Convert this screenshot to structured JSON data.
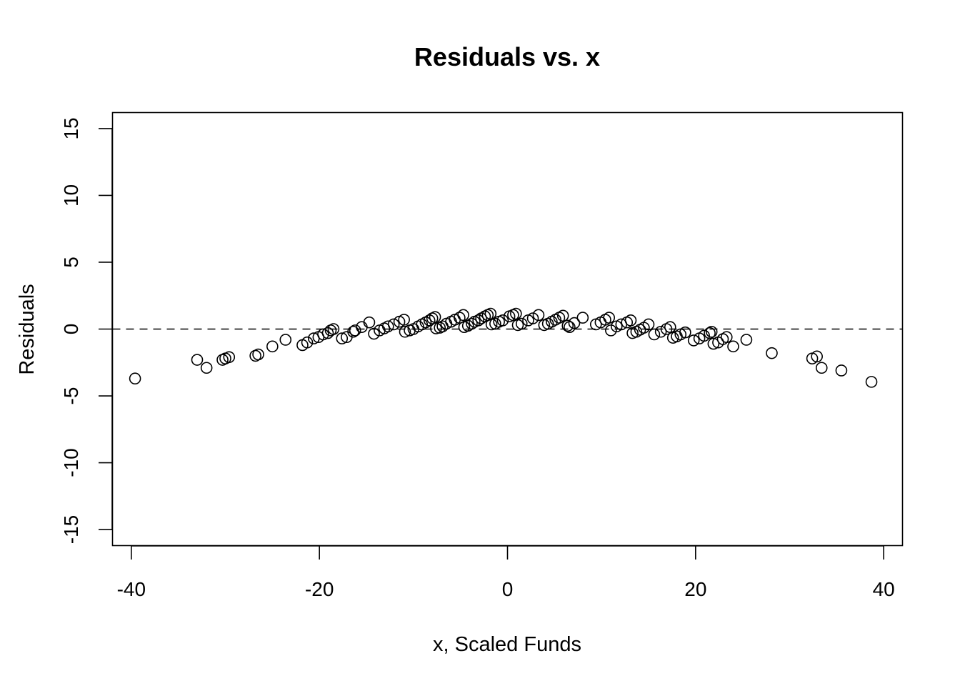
{
  "chart_data": {
    "type": "scatter",
    "title": "Residuals vs. x",
    "xlabel": "x, Scaled Funds",
    "ylabel": "Residuals",
    "xlim": [
      -42,
      42
    ],
    "ylim": [
      -16.2,
      16.2
    ],
    "xticks": [
      -40,
      -20,
      0,
      20,
      40
    ],
    "yticks": [
      -15,
      -10,
      -5,
      0,
      5,
      10,
      15
    ],
    "reference_line": {
      "y": 0,
      "style": "dashed"
    },
    "grid": false,
    "points": [
      {
        "x": -39.6,
        "y": -3.7
      },
      {
        "x": -33.0,
        "y": -2.3
      },
      {
        "x": -32.0,
        "y": -2.9
      },
      {
        "x": -30.3,
        "y": -2.3
      },
      {
        "x": -30.0,
        "y": -2.2
      },
      {
        "x": -29.6,
        "y": -2.1
      },
      {
        "x": -26.8,
        "y": -2.0
      },
      {
        "x": -26.5,
        "y": -1.9
      },
      {
        "x": -25.0,
        "y": -1.3
      },
      {
        "x": -23.6,
        "y": -0.8
      },
      {
        "x": -21.8,
        "y": -1.2
      },
      {
        "x": -21.3,
        "y": -1.0
      },
      {
        "x": -20.6,
        "y": -0.7
      },
      {
        "x": -20.1,
        "y": -0.6
      },
      {
        "x": -19.6,
        "y": -0.4
      },
      {
        "x": -19.1,
        "y": -0.3
      },
      {
        "x": -18.8,
        "y": -0.1
      },
      {
        "x": -18.5,
        "y": 0.0
      },
      {
        "x": -17.6,
        "y": -0.7
      },
      {
        "x": -17.1,
        "y": -0.6
      },
      {
        "x": -16.4,
        "y": -0.2
      },
      {
        "x": -16.2,
        "y": -0.1
      },
      {
        "x": -15.5,
        "y": 0.15
      },
      {
        "x": -14.7,
        "y": 0.5
      },
      {
        "x": -14.2,
        "y": -0.35
      },
      {
        "x": -13.6,
        "y": -0.1
      },
      {
        "x": -13.1,
        "y": 0.05
      },
      {
        "x": -12.7,
        "y": 0.2
      },
      {
        "x": -12.1,
        "y": 0.35
      },
      {
        "x": -11.5,
        "y": 0.55
      },
      {
        "x": -11.0,
        "y": 0.7
      },
      {
        "x": -10.9,
        "y": -0.2
      },
      {
        "x": -10.4,
        "y": -0.1
      },
      {
        "x": -10.0,
        "y": 0.0
      },
      {
        "x": -9.5,
        "y": 0.2
      },
      {
        "x": -9.1,
        "y": 0.35
      },
      {
        "x": -8.7,
        "y": 0.5
      },
      {
        "x": -8.3,
        "y": 0.65
      },
      {
        "x": -8.0,
        "y": 0.8
      },
      {
        "x": -7.7,
        "y": 0.9
      },
      {
        "x": -7.6,
        "y": 0.05
      },
      {
        "x": -7.2,
        "y": 0.1
      },
      {
        "x": -6.9,
        "y": 0.2
      },
      {
        "x": -6.5,
        "y": 0.4
      },
      {
        "x": -6.0,
        "y": 0.55
      },
      {
        "x": -5.6,
        "y": 0.7
      },
      {
        "x": -5.1,
        "y": 0.85
      },
      {
        "x": -4.7,
        "y": 1.05
      },
      {
        "x": -4.6,
        "y": 0.15
      },
      {
        "x": -4.2,
        "y": 0.25
      },
      {
        "x": -3.8,
        "y": 0.4
      },
      {
        "x": -3.5,
        "y": 0.55
      },
      {
        "x": -3.1,
        "y": 0.65
      },
      {
        "x": -2.8,
        "y": 0.8
      },
      {
        "x": -2.4,
        "y": 0.95
      },
      {
        "x": -2.1,
        "y": 1.05
      },
      {
        "x": -1.8,
        "y": 1.15
      },
      {
        "x": -1.7,
        "y": 0.35
      },
      {
        "x": -1.3,
        "y": 0.4
      },
      {
        "x": -0.9,
        "y": 0.55
      },
      {
        "x": -0.5,
        "y": 0.65
      },
      {
        "x": 0.2,
        "y": 0.95
      },
      {
        "x": 0.6,
        "y": 1.05
      },
      {
        "x": 0.9,
        "y": 1.15
      },
      {
        "x": 1.1,
        "y": 0.3
      },
      {
        "x": 1.5,
        "y": 0.4
      },
      {
        "x": 2.2,
        "y": 0.65
      },
      {
        "x": 2.7,
        "y": 0.8
      },
      {
        "x": 3.3,
        "y": 1.05
      },
      {
        "x": 3.9,
        "y": 0.3
      },
      {
        "x": 4.3,
        "y": 0.4
      },
      {
        "x": 4.7,
        "y": 0.55
      },
      {
        "x": 5.1,
        "y": 0.7
      },
      {
        "x": 5.5,
        "y": 0.85
      },
      {
        "x": 5.9,
        "y": 1.0
      },
      {
        "x": 6.4,
        "y": 0.25
      },
      {
        "x": 6.6,
        "y": 0.15
      },
      {
        "x": 7.1,
        "y": 0.45
      },
      {
        "x": 8.0,
        "y": 0.85
      },
      {
        "x": 9.4,
        "y": 0.35
      },
      {
        "x": 9.9,
        "y": 0.5
      },
      {
        "x": 10.4,
        "y": 0.7
      },
      {
        "x": 10.8,
        "y": 0.85
      },
      {
        "x": 11.0,
        "y": -0.1
      },
      {
        "x": 11.6,
        "y": 0.2
      },
      {
        "x": 12.1,
        "y": 0.35
      },
      {
        "x": 12.7,
        "y": 0.5
      },
      {
        "x": 13.1,
        "y": 0.65
      },
      {
        "x": 13.3,
        "y": -0.3
      },
      {
        "x": 13.7,
        "y": -0.2
      },
      {
        "x": 14.1,
        "y": -0.05
      },
      {
        "x": 14.5,
        "y": 0.1
      },
      {
        "x": 15.0,
        "y": 0.35
      },
      {
        "x": 15.6,
        "y": -0.4
      },
      {
        "x": 16.3,
        "y": -0.2
      },
      {
        "x": 16.9,
        "y": 0.0
      },
      {
        "x": 17.3,
        "y": 0.15
      },
      {
        "x": 17.6,
        "y": -0.65
      },
      {
        "x": 18.0,
        "y": -0.55
      },
      {
        "x": 18.4,
        "y": -0.4
      },
      {
        "x": 18.9,
        "y": -0.25
      },
      {
        "x": 19.8,
        "y": -0.85
      },
      {
        "x": 20.4,
        "y": -0.7
      },
      {
        "x": 20.9,
        "y": -0.5
      },
      {
        "x": 21.5,
        "y": -0.3
      },
      {
        "x": 21.7,
        "y": -0.2
      },
      {
        "x": 21.9,
        "y": -1.1
      },
      {
        "x": 22.4,
        "y": -1.0
      },
      {
        "x": 22.9,
        "y": -0.75
      },
      {
        "x": 23.3,
        "y": -0.6
      },
      {
        "x": 24.0,
        "y": -1.3
      },
      {
        "x": 25.4,
        "y": -0.8
      },
      {
        "x": 28.1,
        "y": -1.8
      },
      {
        "x": 32.4,
        "y": -2.2
      },
      {
        "x": 32.9,
        "y": -2.05
      },
      {
        "x": 33.4,
        "y": -2.9
      },
      {
        "x": 35.5,
        "y": -3.1
      },
      {
        "x": 38.7,
        "y": -3.95
      }
    ]
  }
}
